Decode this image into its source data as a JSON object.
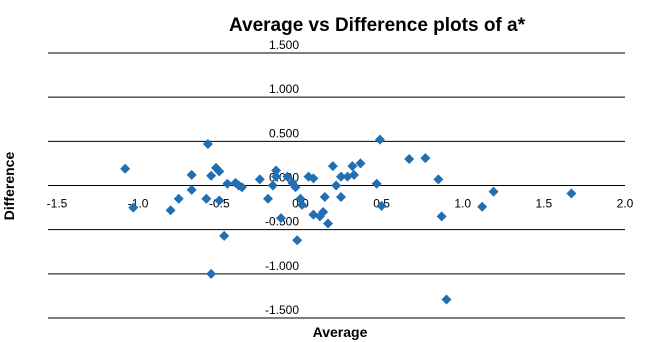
{
  "chart_data": {
    "type": "scatter",
    "title": "Average vs Difference plots of a*",
    "xlabel": "Average",
    "ylabel": "Difference",
    "xlim": [
      -1.5,
      2.0
    ],
    "ylim": [
      -1.5,
      1.5
    ],
    "x_ticks": [
      "-1.5",
      "-1.0",
      "-0.5",
      "0.0",
      "0.5",
      "1.0",
      "1.5",
      "2.0"
    ],
    "y_ticks": [
      "1.500",
      "1.000",
      "0.500",
      "0.000",
      "-0.500",
      "-1.000",
      "-1.500"
    ],
    "grid": true,
    "legend": "none",
    "color": "#1f6fb2",
    "points": [
      {
        "x": -1.08,
        "y": 0.19
      },
      {
        "x": -1.03,
        "y": -0.25
      },
      {
        "x": -0.8,
        "y": -0.28
      },
      {
        "x": -0.75,
        "y": -0.15
      },
      {
        "x": -0.67,
        "y": 0.12
      },
      {
        "x": -0.67,
        "y": -0.05
      },
      {
        "x": -0.57,
        "y": 0.47
      },
      {
        "x": -0.58,
        "y": -0.15
      },
      {
        "x": -0.55,
        "y": 0.11
      },
      {
        "x": -0.52,
        "y": 0.2
      },
      {
        "x": -0.5,
        "y": 0.16
      },
      {
        "x": -0.5,
        "y": -0.17
      },
      {
        "x": -0.47,
        "y": -0.57
      },
      {
        "x": -0.45,
        "y": 0.02
      },
      {
        "x": -0.4,
        "y": 0.03
      },
      {
        "x": -0.38,
        "y": 0.0
      },
      {
        "x": -0.36,
        "y": -0.02
      },
      {
        "x": -0.25,
        "y": 0.07
      },
      {
        "x": -0.2,
        "y": -0.15
      },
      {
        "x": -0.17,
        "y": 0.0
      },
      {
        "x": -0.15,
        "y": 0.17
      },
      {
        "x": -0.15,
        "y": 0.1
      },
      {
        "x": -0.12,
        "y": -0.37
      },
      {
        "x": -0.08,
        "y": 0.1
      },
      {
        "x": -0.05,
        "y": 0.03
      },
      {
        "x": -0.03,
        "y": -0.02
      },
      {
        "x": -0.02,
        "y": -0.62
      },
      {
        "x": 0.0,
        "y": -0.15
      },
      {
        "x": 0.01,
        "y": -0.22
      },
      {
        "x": 0.05,
        "y": 0.1
      },
      {
        "x": 0.08,
        "y": 0.08
      },
      {
        "x": 0.08,
        "y": -0.33
      },
      {
        "x": 0.12,
        "y": -0.35
      },
      {
        "x": 0.14,
        "y": -0.3
      },
      {
        "x": 0.15,
        "y": -0.13
      },
      {
        "x": 0.17,
        "y": -0.43
      },
      {
        "x": 0.2,
        "y": 0.22
      },
      {
        "x": 0.22,
        "y": 0.0
      },
      {
        "x": 0.25,
        "y": 0.1
      },
      {
        "x": 0.25,
        "y": -0.13
      },
      {
        "x": 0.29,
        "y": 0.1
      },
      {
        "x": 0.32,
        "y": 0.22
      },
      {
        "x": 0.33,
        "y": 0.12
      },
      {
        "x": 0.37,
        "y": 0.25
      },
      {
        "x": 0.47,
        "y": 0.02
      },
      {
        "x": 0.49,
        "y": 0.52
      },
      {
        "x": 0.5,
        "y": -0.23
      },
      {
        "x": 0.67,
        "y": 0.3
      },
      {
        "x": 0.77,
        "y": 0.31
      },
      {
        "x": 0.85,
        "y": 0.07
      },
      {
        "x": 0.87,
        "y": -0.35
      },
      {
        "x": 0.9,
        "y": -1.29
      },
      {
        "x": 1.12,
        "y": -0.24
      },
      {
        "x": 1.19,
        "y": -0.07
      },
      {
        "x": 1.67,
        "y": -0.09
      },
      {
        "x": -0.55,
        "y": -1.0
      }
    ]
  }
}
